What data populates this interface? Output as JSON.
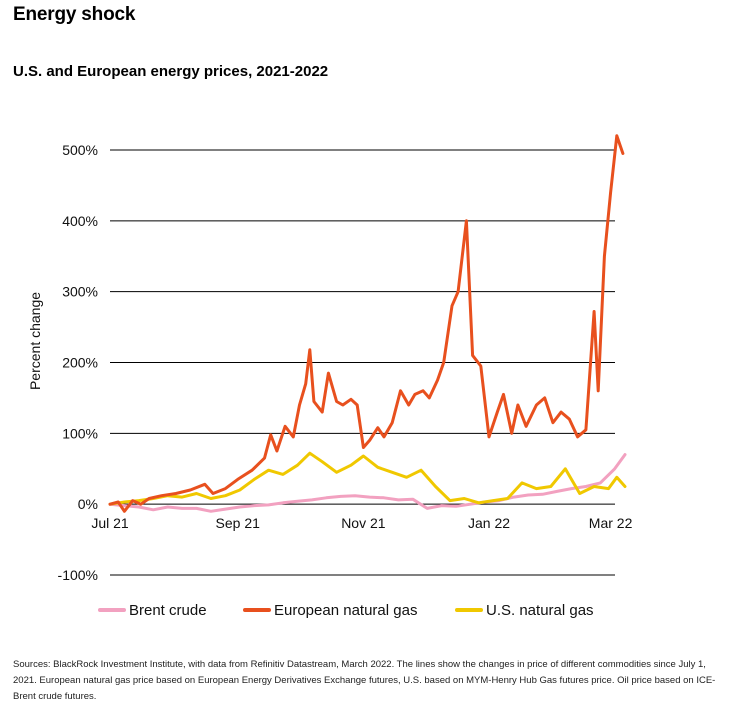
{
  "title": "Energy shock",
  "subtitle": "U.S. and European energy prices, 2021-2022",
  "sources": "Sources: BlackRock Investment Institute, with data from Refinitiv Datastream, March 2022. The lines show the changes in price of different commodities since July 1, 2021. European natural gas price based on European Energy Derivatives Exchange futures, U.S. based on MYM-Henry Hub Gas futures price. Oil price based on ICE-Brent crude futures.",
  "chart_data": {
    "type": "line",
    "title": "U.S. and European energy prices, 2021-2022",
    "ylabel": "Percent change",
    "xlabel": "",
    "ylim": [
      -100,
      500
    ],
    "xlim": [
      "2021-07-01",
      "2022-03-10"
    ],
    "yticks": [
      500,
      400,
      300,
      200,
      100,
      0,
      -100
    ],
    "ytick_labels": [
      "500%",
      "400%",
      "300%",
      "200%",
      "100%",
      "0%",
      "-100%"
    ],
    "xticks": [
      "2021-07-01",
      "2021-09-01",
      "2021-11-01",
      "2022-01-01",
      "2022-03-01"
    ],
    "xtick_labels": [
      "Jul 21",
      "Sep 21",
      "Nov 21",
      "Jan 22",
      "Mar 22"
    ],
    "grid": "horizontal",
    "legend": "bottom",
    "series": [
      {
        "name": "Brent crude",
        "color": "#f2a1c0",
        "points": [
          [
            "2021-07-01",
            0
          ],
          [
            "2021-07-08",
            -2
          ],
          [
            "2021-07-15",
            -4
          ],
          [
            "2021-07-22",
            -8
          ],
          [
            "2021-07-29",
            -4
          ],
          [
            "2021-08-05",
            -6
          ],
          [
            "2021-08-12",
            -6
          ],
          [
            "2021-08-19",
            -10
          ],
          [
            "2021-08-26",
            -7
          ],
          [
            "2021-09-02",
            -4
          ],
          [
            "2021-09-09",
            -2
          ],
          [
            "2021-09-16",
            -1
          ],
          [
            "2021-09-23",
            2
          ],
          [
            "2021-09-30",
            4
          ],
          [
            "2021-10-07",
            6
          ],
          [
            "2021-10-14",
            9
          ],
          [
            "2021-10-21",
            11
          ],
          [
            "2021-10-28",
            12
          ],
          [
            "2021-11-04",
            10
          ],
          [
            "2021-11-11",
            9
          ],
          [
            "2021-11-18",
            6
          ],
          [
            "2021-11-25",
            7
          ],
          [
            "2021-12-02",
            -6
          ],
          [
            "2021-12-09",
            -2
          ],
          [
            "2021-12-16",
            -3
          ],
          [
            "2021-12-23",
            0
          ],
          [
            "2021-12-30",
            3
          ],
          [
            "2022-01-06",
            5
          ],
          [
            "2022-01-13",
            10
          ],
          [
            "2022-01-20",
            13
          ],
          [
            "2022-01-27",
            14
          ],
          [
            "2022-02-03",
            18
          ],
          [
            "2022-02-10",
            22
          ],
          [
            "2022-02-17",
            25
          ],
          [
            "2022-02-24",
            30
          ],
          [
            "2022-03-03",
            50
          ],
          [
            "2022-03-08",
            70
          ]
        ]
      },
      {
        "name": "European natural gas",
        "color": "#e8501e",
        "points": [
          [
            "2021-07-01",
            0
          ],
          [
            "2021-07-05",
            3
          ],
          [
            "2021-07-08",
            -10
          ],
          [
            "2021-07-12",
            5
          ],
          [
            "2021-07-16",
            0
          ],
          [
            "2021-07-20",
            8
          ],
          [
            "2021-07-26",
            12
          ],
          [
            "2021-08-02",
            15
          ],
          [
            "2021-08-09",
            20
          ],
          [
            "2021-08-16",
            28
          ],
          [
            "2021-08-20",
            15
          ],
          [
            "2021-08-26",
            22
          ],
          [
            "2021-09-01",
            35
          ],
          [
            "2021-09-08",
            48
          ],
          [
            "2021-09-14",
            65
          ],
          [
            "2021-09-17",
            98
          ],
          [
            "2021-09-20",
            75
          ],
          [
            "2021-09-24",
            110
          ],
          [
            "2021-09-28",
            95
          ],
          [
            "2021-10-01",
            140
          ],
          [
            "2021-10-04",
            170
          ],
          [
            "2021-10-06",
            218
          ],
          [
            "2021-10-08",
            145
          ],
          [
            "2021-10-12",
            130
          ],
          [
            "2021-10-15",
            185
          ],
          [
            "2021-10-19",
            145
          ],
          [
            "2021-10-22",
            140
          ],
          [
            "2021-10-26",
            148
          ],
          [
            "2021-10-29",
            140
          ],
          [
            "2021-11-01",
            80
          ],
          [
            "2021-11-04",
            90
          ],
          [
            "2021-11-08",
            108
          ],
          [
            "2021-11-11",
            95
          ],
          [
            "2021-11-15",
            115
          ],
          [
            "2021-11-19",
            160
          ],
          [
            "2021-11-23",
            140
          ],
          [
            "2021-11-26",
            155
          ],
          [
            "2021-11-30",
            160
          ],
          [
            "2021-12-03",
            150
          ],
          [
            "2021-12-07",
            175
          ],
          [
            "2021-12-10",
            200
          ],
          [
            "2021-12-14",
            280
          ],
          [
            "2021-12-17",
            300
          ],
          [
            "2021-12-21",
            400
          ],
          [
            "2021-12-24",
            210
          ],
          [
            "2021-12-28",
            195
          ],
          [
            "2022-01-01",
            95
          ],
          [
            "2022-01-05",
            130
          ],
          [
            "2022-01-08",
            155
          ],
          [
            "2022-01-12",
            100
          ],
          [
            "2022-01-15",
            140
          ],
          [
            "2022-01-19",
            110
          ],
          [
            "2022-01-24",
            140
          ],
          [
            "2022-01-28",
            150
          ],
          [
            "2022-02-01",
            115
          ],
          [
            "2022-02-05",
            130
          ],
          [
            "2022-02-09",
            120
          ],
          [
            "2022-02-13",
            95
          ],
          [
            "2022-02-17",
            105
          ],
          [
            "2022-02-21",
            272
          ],
          [
            "2022-02-23",
            160
          ],
          [
            "2022-02-26",
            350
          ],
          [
            "2022-03-01",
            440
          ],
          [
            "2022-03-04",
            520
          ],
          [
            "2022-03-07",
            495
          ]
        ]
      },
      {
        "name": "U.S. natural gas",
        "color": "#f0c800",
        "points": [
          [
            "2021-07-01",
            0
          ],
          [
            "2021-07-08",
            3
          ],
          [
            "2021-07-15",
            5
          ],
          [
            "2021-07-22",
            8
          ],
          [
            "2021-07-29",
            12
          ],
          [
            "2021-08-05",
            10
          ],
          [
            "2021-08-12",
            15
          ],
          [
            "2021-08-19",
            8
          ],
          [
            "2021-08-26",
            12
          ],
          [
            "2021-09-02",
            20
          ],
          [
            "2021-09-09",
            35
          ],
          [
            "2021-09-16",
            48
          ],
          [
            "2021-09-23",
            42
          ],
          [
            "2021-09-30",
            55
          ],
          [
            "2021-10-06",
            72
          ],
          [
            "2021-10-12",
            60
          ],
          [
            "2021-10-19",
            45
          ],
          [
            "2021-10-26",
            55
          ],
          [
            "2021-11-01",
            68
          ],
          [
            "2021-11-08",
            52
          ],
          [
            "2021-11-15",
            45
          ],
          [
            "2021-11-22",
            38
          ],
          [
            "2021-11-29",
            48
          ],
          [
            "2021-12-06",
            25
          ],
          [
            "2021-12-13",
            5
          ],
          [
            "2021-12-20",
            8
          ],
          [
            "2021-12-27",
            2
          ],
          [
            "2022-01-03",
            5
          ],
          [
            "2022-01-10",
            8
          ],
          [
            "2022-01-17",
            30
          ],
          [
            "2022-01-24",
            22
          ],
          [
            "2022-01-31",
            25
          ],
          [
            "2022-02-07",
            50
          ],
          [
            "2022-02-14",
            15
          ],
          [
            "2022-02-21",
            25
          ],
          [
            "2022-02-28",
            22
          ],
          [
            "2022-03-04",
            38
          ],
          [
            "2022-03-08",
            25
          ]
        ]
      }
    ]
  }
}
